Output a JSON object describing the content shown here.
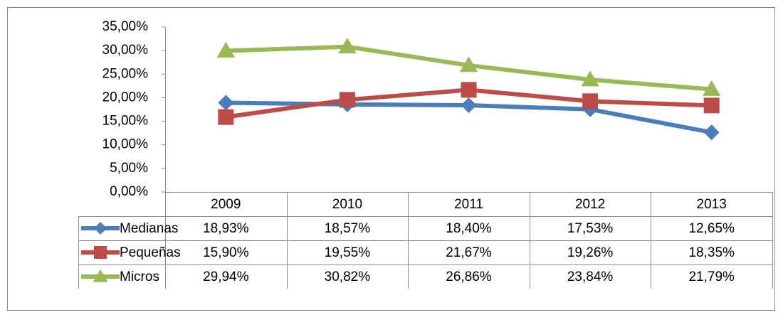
{
  "chart_data": {
    "type": "line",
    "categories": [
      "2009",
      "2010",
      "2011",
      "2012",
      "2013"
    ],
    "series": [
      {
        "name": "Medianas",
        "color": "#4a7ebb",
        "marker": "diamond",
        "values": [
          18.93,
          18.57,
          18.4,
          17.53,
          12.65
        ],
        "value_labels": [
          "18,93%",
          "18,57%",
          "18,40%",
          "17,53%",
          "12,65%"
        ]
      },
      {
        "name": "Pequeñas",
        "color": "#be4b48",
        "marker": "square",
        "values": [
          15.9,
          19.55,
          21.67,
          19.26,
          18.35
        ],
        "value_labels": [
          "15,90%",
          "19,55%",
          "21,67%",
          "19,26%",
          "18,35%"
        ]
      },
      {
        "name": "Micros",
        "color": "#98b954",
        "marker": "triangle",
        "values": [
          29.94,
          30.82,
          26.86,
          23.84,
          21.79
        ],
        "value_labels": [
          "29,94%",
          "30,82%",
          "26,86%",
          "23,84%",
          "21,79%"
        ]
      }
    ],
    "ylim": [
      0,
      35
    ],
    "yticks": [
      {
        "value": 0,
        "label": "0,00%"
      },
      {
        "value": 5,
        "label": "5,00%"
      },
      {
        "value": 10,
        "label": "10,00%"
      },
      {
        "value": 15,
        "label": "15,00%"
      },
      {
        "value": 20,
        "label": "20,00%"
      },
      {
        "value": 25,
        "label": "25,00%"
      },
      {
        "value": 30,
        "label": "30,00%"
      },
      {
        "value": 35,
        "label": "35,00%"
      }
    ],
    "data_table": true
  }
}
